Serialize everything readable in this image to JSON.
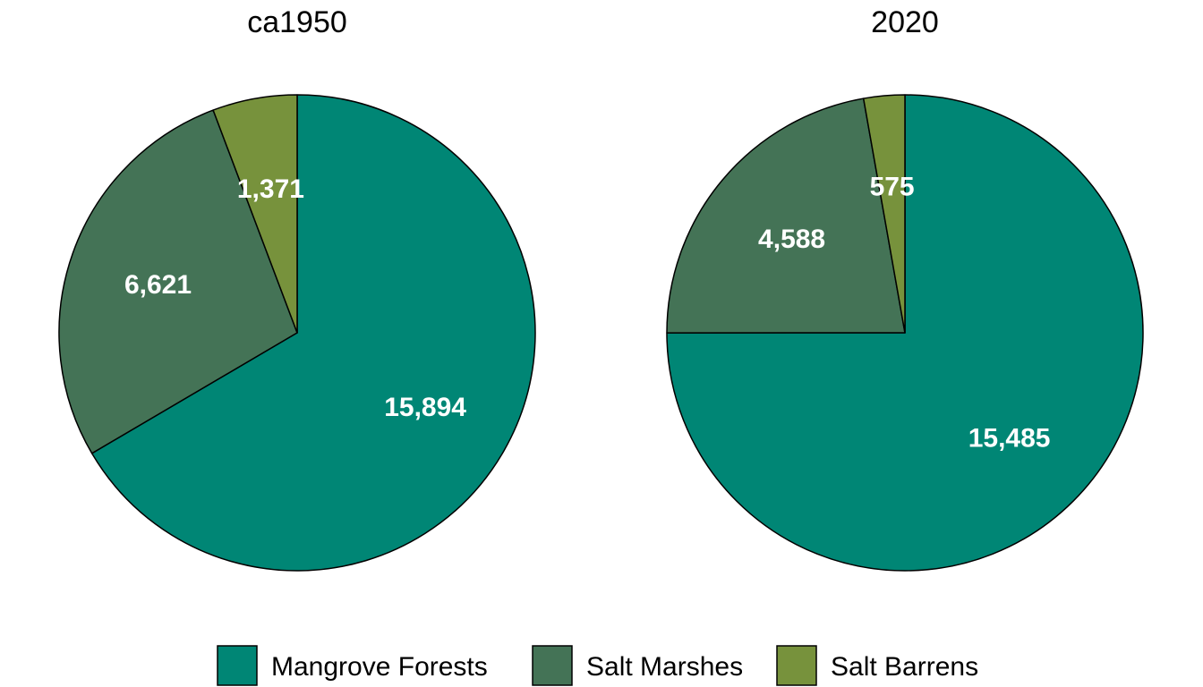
{
  "chart_data": [
    {
      "type": "pie",
      "title": "ca1950",
      "categories": [
        "Mangrove Forests",
        "Salt Marshes",
        "Salt Barrens"
      ],
      "values": [
        15894,
        6621,
        1371
      ],
      "labels": [
        "15,894",
        "6,621",
        "1,371"
      ],
      "start": "12 o'clock",
      "direction": "clockwise"
    },
    {
      "type": "pie",
      "title": "2020",
      "categories": [
        "Mangrove Forests",
        "Salt Marshes",
        "Salt Barrens"
      ],
      "values": [
        15485,
        4588,
        575
      ],
      "labels": [
        "15,485",
        "4,588",
        "575"
      ],
      "start": "12 o'clock",
      "direction": "clockwise"
    }
  ],
  "legend": {
    "position": "bottom",
    "items": [
      {
        "label": "Mangrove Forests",
        "color": "#008675"
      },
      {
        "label": "Salt Marshes",
        "color": "#447356"
      },
      {
        "label": "Salt Barrens",
        "color": "#77923C"
      }
    ]
  },
  "colors": {
    "Mangrove Forests": "#008675",
    "Salt Marshes": "#447356",
    "Salt Barrens": "#77923C",
    "outline": "#000000",
    "label_text": "#ffffff"
  }
}
